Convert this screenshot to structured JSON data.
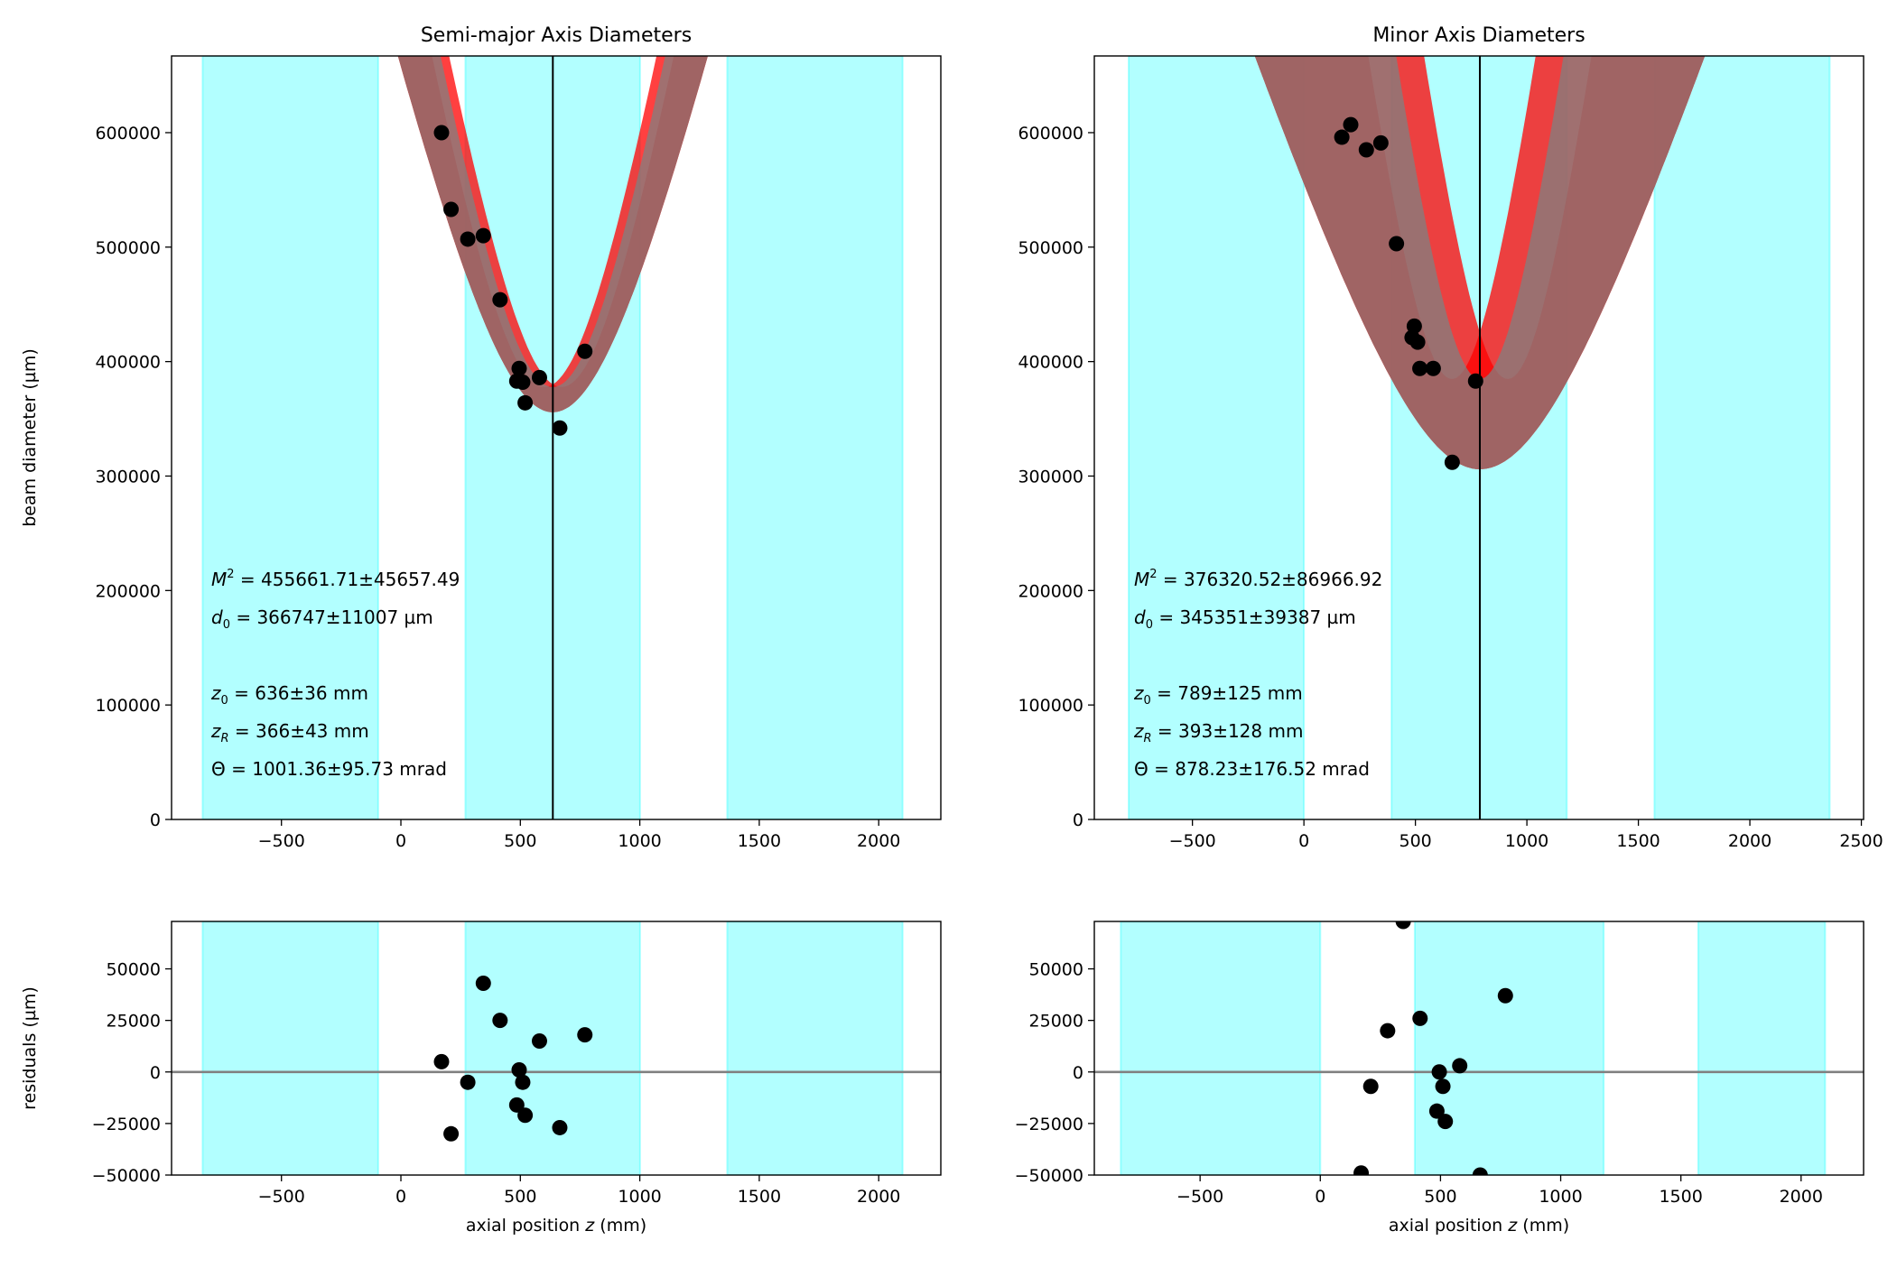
{
  "chart_data": [
    {
      "type": "scatter",
      "panel": "main",
      "title": "Semi-major Axis Diameters",
      "xlabel": "",
      "ylabel": "beam diameter (µm)",
      "xlim": [
        -960,
        2260
      ],
      "ylim": [
        0,
        667000
      ],
      "xticks": [
        -500,
        0,
        500,
        1000,
        1500,
        2000
      ],
      "xtick_labels": [
        "−500",
        "0",
        "500",
        "1000",
        "1500",
        "2000"
      ],
      "yticks": [
        0,
        100000,
        200000,
        300000,
        400000,
        500000,
        600000
      ],
      "ytick_labels": [
        "0",
        "100000",
        "200000",
        "300000",
        "400000",
        "500000",
        "600000"
      ],
      "bands": [
        [
          -830,
          -95
        ],
        [
          270,
          1001
        ],
        [
          1366,
          2100
        ]
      ],
      "vline": 636,
      "fit": {
        "z0": 636,
        "d0": 366747,
        "zR": 366,
        "dz0": 36,
        "dd0": 11007,
        "dzR": 43
      },
      "points": [
        [
          170,
          600000
        ],
        [
          210,
          533000
        ],
        [
          280,
          507000
        ],
        [
          345,
          510000
        ],
        [
          415,
          454000
        ],
        [
          495,
          394000
        ],
        [
          485,
          383000
        ],
        [
          520,
          364000
        ],
        [
          510,
          382000
        ],
        [
          580,
          386000
        ],
        [
          665,
          342000
        ],
        [
          770,
          409000
        ]
      ],
      "annotations": {
        "m2_label": "M",
        "m2_exp": "2",
        "m2_val": " = 455661.71±45657.49",
        "d0_label": "d",
        "d0_sub": "0",
        "d0_val": " = 366747±11007 µm",
        "z0_label": "z",
        "z0_sub": "0",
        "z0_val": "  = 636±36 mm",
        "zr_label": "z",
        "zr_sub": "R",
        "zr_val": "  = 366±43 mm",
        "theta_label": "Θ",
        "theta_val": "  = 1001.36±95.73 mrad"
      }
    },
    {
      "type": "scatter",
      "panel": "main",
      "title": "Minor Axis Diameters",
      "xlabel": "",
      "ylabel": "",
      "xlim": [
        -940,
        2510
      ],
      "ylim": [
        0,
        667000
      ],
      "xticks": [
        -500,
        0,
        500,
        1000,
        1500,
        2000,
        2500
      ],
      "xtick_labels": [
        "−500",
        "0",
        "500",
        "1000",
        "1500",
        "2000",
        "2500"
      ],
      "yticks": [
        0,
        100000,
        200000,
        300000,
        400000,
        500000,
        600000
      ],
      "ytick_labels": [
        "0",
        "100000",
        "200000",
        "300000",
        "400000",
        "500000",
        "600000"
      ],
      "bands": [
        [
          -786,
          0
        ],
        [
          393,
          1179
        ],
        [
          1572,
          2358
        ]
      ],
      "vline": 789,
      "fit": {
        "z0": 789,
        "d0": 345351,
        "zR": 393,
        "dz0": 125,
        "dd0": 39387,
        "dzR": 128
      },
      "points": [
        [
          170,
          596000
        ],
        [
          210,
          607000
        ],
        [
          280,
          585000
        ],
        [
          345,
          591000
        ],
        [
          415,
          503000
        ],
        [
          485,
          421000
        ],
        [
          495,
          431000
        ],
        [
          510,
          417000
        ],
        [
          520,
          394000
        ],
        [
          580,
          394000
        ],
        [
          665,
          312000
        ],
        [
          770,
          383000
        ]
      ],
      "annotations": {
        "m2_label": "M",
        "m2_exp": "2",
        "m2_val": " = 376320.52±86966.92",
        "d0_label": "d",
        "d0_sub": "0",
        "d0_val": " = 345351±39387 µm",
        "z0_label": "z",
        "z0_sub": "0",
        "z0_val": "  = 789±125 mm",
        "zr_label": "z",
        "zr_sub": "R",
        "zr_val": "  = 393±128 mm",
        "theta_label": "Θ",
        "theta_val": "  = 878.23±176.52 mrad"
      }
    },
    {
      "type": "scatter",
      "panel": "residuals",
      "title": "",
      "xlabel_pre": "axial position ",
      "xlabel_var": "z",
      "xlabel_post": " (mm)",
      "ylabel": "residuals (µm)",
      "xlim": [
        -960,
        2260
      ],
      "ylim": [
        -50000,
        73000
      ],
      "xticks": [
        -500,
        0,
        500,
        1000,
        1500,
        2000
      ],
      "xtick_labels": [
        "−500",
        "0",
        "500",
        "1000",
        "1500",
        "2000"
      ],
      "yticks": [
        -50000,
        -25000,
        0,
        25000,
        50000
      ],
      "ytick_labels": [
        "−50000",
        "−25000",
        "0",
        "25000",
        "50000"
      ],
      "bands": [
        [
          -830,
          -95
        ],
        [
          270,
          1001
        ],
        [
          1366,
          2100
        ]
      ],
      "hline": 0,
      "points": [
        [
          170,
          5000
        ],
        [
          210,
          -30000
        ],
        [
          280,
          -5000
        ],
        [
          345,
          43000
        ],
        [
          415,
          25000
        ],
        [
          485,
          -16000
        ],
        [
          495,
          1000
        ],
        [
          510,
          -5000
        ],
        [
          520,
          -21000
        ],
        [
          580,
          15000
        ],
        [
          665,
          -27000
        ],
        [
          770,
          18000
        ]
      ]
    },
    {
      "type": "scatter",
      "panel": "residuals",
      "title": "",
      "xlabel_pre": "axial position ",
      "xlabel_var": "z",
      "xlabel_post": " (mm)",
      "ylabel": "",
      "xlim": [
        -940,
        2260
      ],
      "ylim": [
        -50000,
        73000
      ],
      "xticks": [
        -500,
        0,
        500,
        1000,
        1500,
        2000
      ],
      "xtick_labels": [
        "−500",
        "0",
        "500",
        "1000",
        "1500",
        "2000"
      ],
      "yticks": [
        -50000,
        -25000,
        0,
        25000,
        50000
      ],
      "ytick_labels": [
        "−50000",
        "−25000",
        "0",
        "25000",
        "50000"
      ],
      "bands": [
        [
          -830,
          0
        ],
        [
          393,
          1179
        ],
        [
          1572,
          2100
        ]
      ],
      "hline": 0,
      "points": [
        [
          170,
          -49000
        ],
        [
          210,
          -7000
        ],
        [
          280,
          20000
        ],
        [
          345,
          73000
        ],
        [
          415,
          26000
        ],
        [
          485,
          -19000
        ],
        [
          495,
          0
        ],
        [
          510,
          -7000
        ],
        [
          520,
          -24000
        ],
        [
          580,
          3000
        ],
        [
          665,
          -50000
        ],
        [
          770,
          37000
        ]
      ]
    }
  ]
}
